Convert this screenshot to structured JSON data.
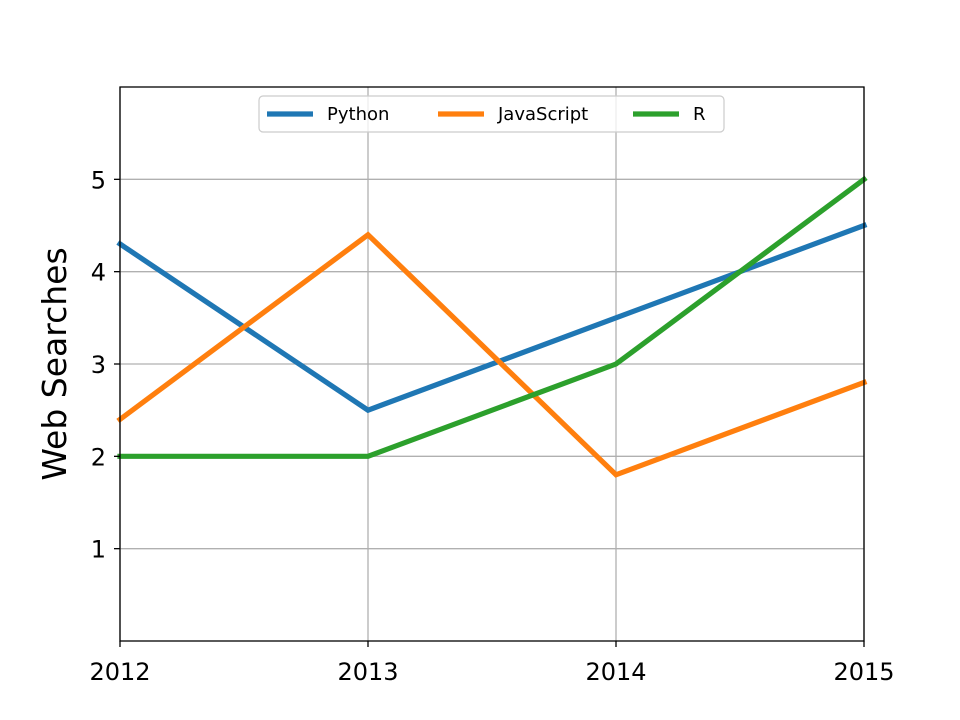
{
  "chart_data": {
    "type": "line",
    "x": [
      2012,
      2013,
      2014,
      2015
    ],
    "xticks": [
      "2012",
      "2013",
      "2014",
      "2015"
    ],
    "yticks": [
      "1",
      "2",
      "3",
      "4",
      "5"
    ],
    "xlim": [
      2012,
      2015
    ],
    "ylim": [
      0,
      6
    ],
    "title": "",
    "xlabel": "",
    "ylabel": "Web Searches",
    "grid": true,
    "legend_position": "upper-center",
    "series": [
      {
        "name": "Python",
        "color": "#1f77b4",
        "values": [
          4.3,
          2.5,
          3.5,
          4.5
        ]
      },
      {
        "name": "JavaScript",
        "color": "#ff7f0e",
        "values": [
          2.4,
          4.4,
          1.8,
          2.8
        ]
      },
      {
        "name": "R",
        "color": "#2ca02c",
        "values": [
          2.0,
          2.0,
          3.0,
          5.0
        ]
      }
    ]
  }
}
